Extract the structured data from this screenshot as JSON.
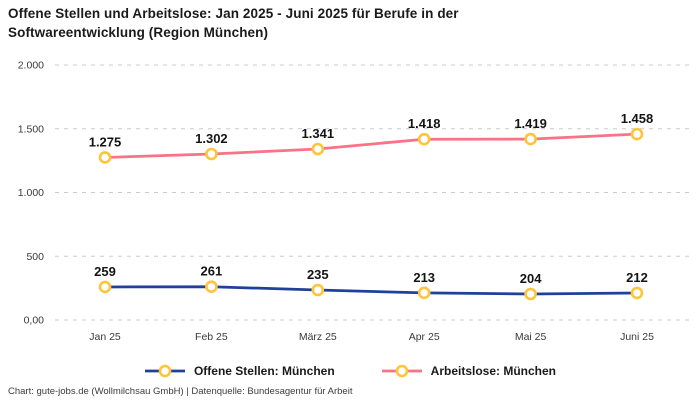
{
  "page": {
    "title": "Offene Stellen und Arbeitslose: Jan 2025 - Juni 2025 für Berufe in der Softwareentwicklung (Region München)",
    "footer": "Chart: gute-jobs.de (Wollmilchsau GmbH) | Datenquelle: Bundesagentur für Arbeit"
  },
  "chart_data": {
    "type": "line",
    "title": "Offene Stellen und Arbeitslose: Jan 2025 - Juni 2025 für Berufe in der Softwareentwicklung (Region München)",
    "categories": [
      "Jan 25",
      "Feb 25",
      "März 25",
      "Apr 25",
      "Mai 25",
      "Juni 25"
    ],
    "series": [
      {
        "name": "Offene Stellen: München",
        "values": [
          259,
          261,
          235,
          213,
          204,
          212
        ],
        "labels": [
          "259",
          "261",
          "235",
          "213",
          "204",
          "212"
        ],
        "color": "#20409A"
      },
      {
        "name": "Arbeitslose: München",
        "values": [
          1275,
          1302,
          1341,
          1418,
          1419,
          1458
        ],
        "labels": [
          "1.275",
          "1.302",
          "1.341",
          "1.418",
          "1.419",
          "1.458"
        ],
        "color": "#F97285"
      }
    ],
    "marker_color": "#FFC43A",
    "marker_fill": "#FFFFFF",
    "grid_color": "#CBCBCB",
    "yticks": [
      0,
      500,
      1000,
      1500,
      2000
    ],
    "ytick_labels": [
      "0,00",
      "500",
      "1.000",
      "1.500",
      "2.000"
    ],
    "ylim": [
      0,
      2000
    ],
    "grid": "dashed-horizontal",
    "legend_position": "bottom-center"
  }
}
